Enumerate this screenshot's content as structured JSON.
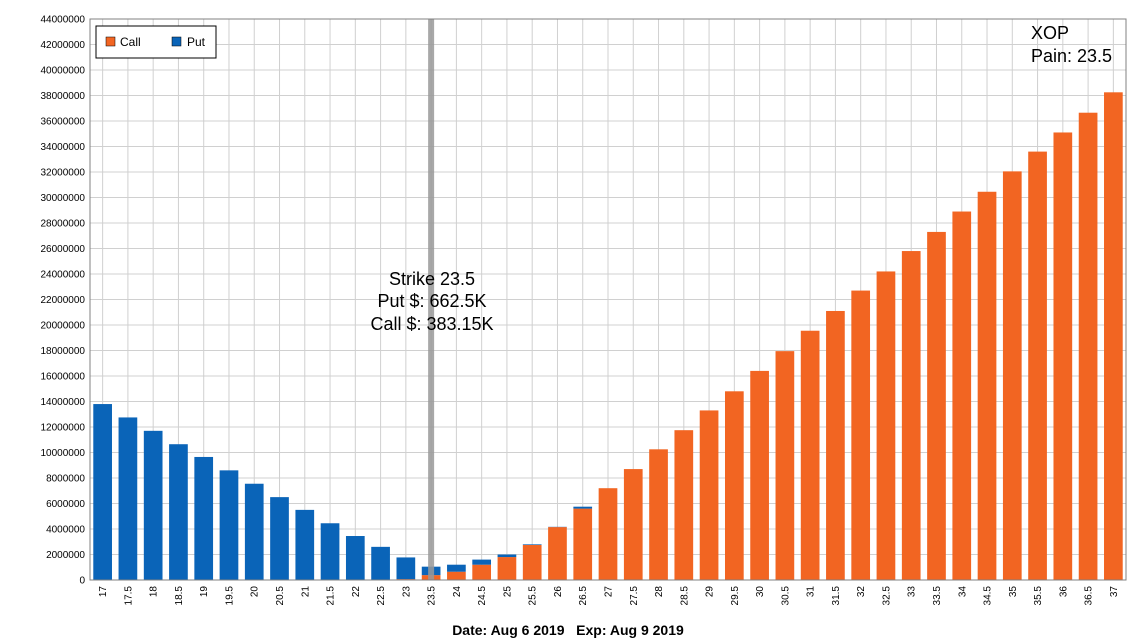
{
  "chart_data": {
    "type": "bar",
    "stacked": true,
    "title": "",
    "xlabel": "",
    "ylabel": "",
    "ylim": [
      0,
      44000000
    ],
    "grid": true,
    "legend": {
      "position": "top-left",
      "entries": [
        "Call",
        "Put"
      ]
    },
    "categories": [
      "17",
      "17.5",
      "18",
      "18.5",
      "19",
      "19.5",
      "20",
      "20.5",
      "21",
      "21.5",
      "22",
      "22.5",
      "23",
      "23.5",
      "24",
      "24.5",
      "25",
      "25.5",
      "26",
      "26.5",
      "27",
      "27.5",
      "28",
      "28.5",
      "29",
      "29.5",
      "30",
      "30.5",
      "31",
      "31.5",
      "32",
      "32.5",
      "33",
      "33.5",
      "34",
      "34.5",
      "35",
      "35.5",
      "36",
      "36.5",
      "37"
    ],
    "series": [
      {
        "name": "Call",
        "color": "#f26522",
        "values": [
          0,
          0,
          0,
          0,
          0,
          0,
          0,
          0,
          0,
          0,
          0,
          0,
          70000,
          383150,
          650000,
          1200000,
          1800000,
          2750000,
          4150000,
          5600000,
          7200000,
          8700000,
          10250000,
          11750000,
          13300000,
          14800000,
          16400000,
          17950000,
          19550000,
          21100000,
          22700000,
          24200000,
          25800000,
          27300000,
          28900000,
          30450000,
          32050000,
          33600000,
          35100000,
          36650000,
          38250000
        ]
      },
      {
        "name": "Put",
        "color": "#0a64b8",
        "values": [
          13800000,
          12750000,
          11700000,
          10650000,
          9650000,
          8600000,
          7550000,
          6500000,
          5500000,
          4450000,
          3450000,
          2600000,
          1700000,
          662500,
          550000,
          400000,
          200000,
          50000,
          20000,
          150000,
          0,
          0,
          0,
          0,
          0,
          0,
          0,
          0,
          0,
          0,
          0,
          0,
          0,
          0,
          0,
          0,
          0,
          0,
          0,
          0,
          0
        ]
      }
    ],
    "highlight": {
      "category": "23.5",
      "color": "#999999"
    },
    "annotations": {
      "ticker": "XOP",
      "pain": "Pain: 23.5",
      "strike": "Strike 23.5",
      "put": "Put $: 662.5K",
      "call": "Call $: 383.15K"
    },
    "footer": "Date: Aug 6 2019   Exp: Aug 9 2019"
  }
}
